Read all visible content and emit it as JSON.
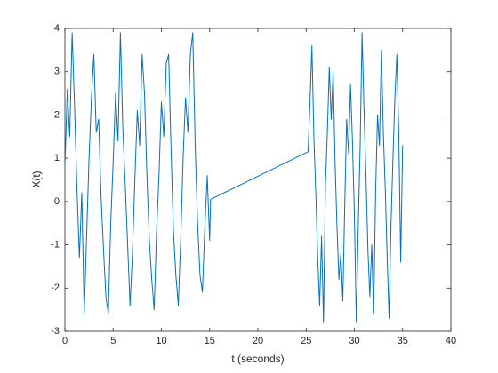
{
  "chart_data": {
    "type": "line",
    "xlabel": "t (seconds)",
    "ylabel": "X(t)",
    "x": [
      0,
      0.25,
      0.5,
      0.75,
      1,
      1.25,
      1.5,
      1.75,
      2,
      2.25,
      2.5,
      2.75,
      3,
      3.25,
      3.5,
      3.75,
      4,
      4.25,
      4.5,
      4.75,
      5,
      5.25,
      5.5,
      5.75,
      6,
      6.25,
      6.5,
      6.75,
      7,
      7.25,
      7.5,
      7.75,
      8,
      8.25,
      8.5,
      8.75,
      9,
      9.25,
      9.5,
      9.75,
      10,
      10.25,
      10.5,
      10.75,
      11,
      11.25,
      11.5,
      11.75,
      12,
      12.25,
      12.5,
      12.75,
      13,
      13.25,
      13.5,
      13.75,
      14,
      14.25,
      14.5,
      14.75,
      15,
      15.1,
      25.2,
      25.4,
      25.6,
      25.8,
      26,
      26.2,
      26.4,
      26.6,
      26.8,
      27,
      27.2,
      27.4,
      27.6,
      27.8,
      28,
      28.2,
      28.4,
      28.6,
      28.8,
      29,
      29.2,
      29.4,
      29.6,
      29.8,
      30,
      30.2,
      30.4,
      30.6,
      30.8,
      31,
      31.2,
      31.4,
      31.6,
      31.8,
      32,
      32.2,
      32.4,
      32.6,
      32.8,
      33,
      33.2,
      33.4,
      33.6,
      33.8,
      34,
      34.2,
      34.4,
      34.6,
      34.8,
      35
    ],
    "series": [
      {
        "color": "#0072BD",
        "values": [
          0.8,
          2.6,
          1.5,
          3.9,
          2.2,
          0.3,
          -1.3,
          0.2,
          -2.6,
          -0.8,
          1.0,
          2.4,
          3.4,
          1.6,
          1.9,
          0.1,
          -1.1,
          -2.2,
          -2.6,
          -0.5,
          0.9,
          2.5,
          1.4,
          3.9,
          1.7,
          0.4,
          -1.0,
          -2.4,
          -1.2,
          0.5,
          2.1,
          1.3,
          3.4,
          2.5,
          0.6,
          -0.9,
          -1.8,
          -2.5,
          -0.7,
          0.6,
          2.3,
          1.5,
          3.2,
          3.4,
          1.2,
          -0.7,
          -1.7,
          -2.4,
          -0.9,
          1.0,
          2.4,
          1.6,
          3.4,
          3.9,
          1.3,
          -0.5,
          -1.7,
          -2.1,
          -0.6,
          0.6,
          -0.9,
          0.05,
          1.15,
          2.3,
          3.6,
          1.5,
          0.2,
          -1.3,
          -2.4,
          -0.8,
          -2.8,
          0.4,
          1.6,
          3.1,
          1.9,
          3.0,
          0.9,
          -0.6,
          -1.8,
          -1.2,
          -2.3,
          -0.1,
          1.9,
          1.1,
          2.7,
          1.4,
          -0.3,
          -2.8,
          -0.6,
          1.3,
          3.9,
          2.1,
          0.6,
          -1.1,
          -2.2,
          -1.0,
          -2.6,
          0.2,
          2.0,
          1.3,
          3.5,
          1.6,
          0.3,
          -1.3,
          -2.7,
          -0.5,
          1.0,
          2.4,
          3.4,
          1.6,
          -1.4,
          1.3
        ]
      }
    ],
    "xlim": [
      0,
      40
    ],
    "xticks": [
      0,
      5,
      10,
      15,
      20,
      25,
      30,
      35,
      40
    ],
    "ylim": [
      -3,
      4
    ],
    "yticks": [
      -3,
      -2,
      -1,
      0,
      1,
      2,
      3,
      4
    ]
  }
}
